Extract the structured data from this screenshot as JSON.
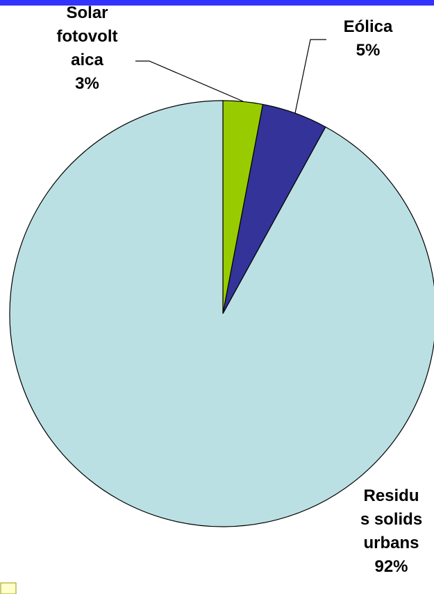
{
  "chart_data": {
    "type": "pie",
    "categories": [
      "Solar fotovoltaica",
      "Eólica",
      "Residus solids urbans"
    ],
    "values": [
      3,
      5,
      92
    ],
    "value_labels": [
      "3%",
      "5%",
      "92%"
    ],
    "colors": [
      "#99cc00",
      "#333399",
      "#bbe0e3"
    ]
  }
}
